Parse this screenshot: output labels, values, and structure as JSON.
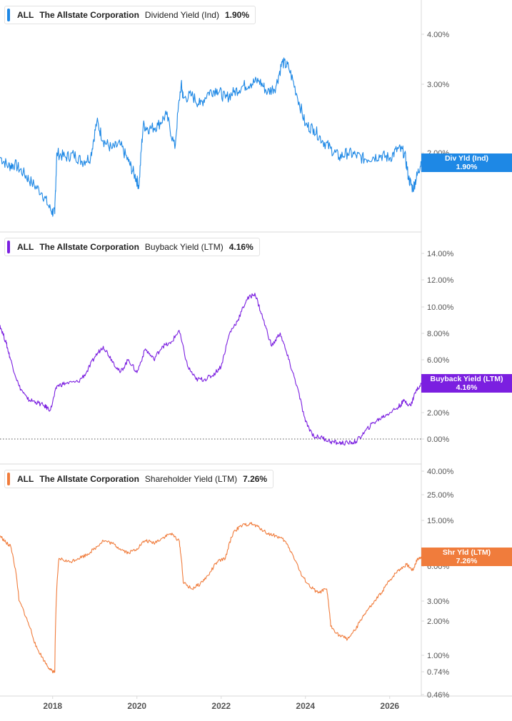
{
  "colors": {
    "dividend": "#1e88e5",
    "buyback": "#7b1fe0",
    "shareholder": "#f07c3c",
    "grid": "#d9d9d9",
    "axis_text": "#555555"
  },
  "x_axis": {
    "ticks": [
      "2018",
      "2020",
      "2022",
      "2024",
      "2026"
    ]
  },
  "panels": [
    {
      "key": "dividend",
      "legend": {
        "ticker": "ALL",
        "company": "The Allstate Corporation",
        "metric": "Dividend Yield (Ind)",
        "value": "1.90%"
      },
      "flag": {
        "label": "Div Yld (Ind)",
        "value": "1.90%"
      },
      "scale": "log",
      "ylim": [
        1.25,
        4.6
      ],
      "tick_labels": [
        "2.00%",
        "3.00%",
        "4.00%"
      ],
      "tick_values": [
        2,
        3,
        4
      ]
    },
    {
      "key": "buyback",
      "legend": {
        "ticker": "ALL",
        "company": "The Allstate Corporation",
        "metric": "Buyback Yield (LTM)",
        "value": "4.16%"
      },
      "flag": {
        "label": "Buyback Yield (LTM)",
        "value": "4.16%"
      },
      "scale": "linear",
      "ylim": [
        -1.7,
        14.6
      ],
      "tick_labels": [
        "0.00%",
        "2.00%",
        "4.00%",
        "6.00%",
        "8.00%",
        "10.00%",
        "12.00%",
        "14.00%"
      ],
      "tick_values": [
        0,
        2,
        4,
        6,
        8,
        10,
        12,
        14
      ],
      "zero_line": true
    },
    {
      "key": "shareholder",
      "legend": {
        "ticker": "ALL",
        "company": "The Allstate Corporation",
        "metric": "Shareholder Yield (LTM)",
        "value": "7.26%"
      },
      "flag": {
        "label": "Shr Yld (LTM)",
        "value": "7.26%"
      },
      "scale": "log",
      "ylim": [
        0.46,
        42
      ],
      "tick_labels": [
        "0.46%",
        "0.74%",
        "1.00%",
        "2.00%",
        "3.00%",
        "6.00%",
        "15.00%",
        "25.00%",
        "40.00%"
      ],
      "tick_values": [
        0.46,
        0.74,
        1,
        2,
        3,
        6,
        15,
        25,
        40
      ]
    }
  ],
  "chart_data": [
    {
      "type": "line",
      "title": "The Allstate Corporation Dividend Yield (Ind)",
      "x_range": [
        2016.75,
        2026.75
      ],
      "yscale": "log",
      "series": [
        {
          "name": "Dividend Yield (Ind)",
          "x": [
            2016.75,
            2016.95,
            2017.1,
            2017.3,
            2017.5,
            2017.75,
            2017.95,
            2018.05,
            2018.1,
            2018.3,
            2018.5,
            2018.7,
            2018.9,
            2019.05,
            2019.2,
            2019.4,
            2019.6,
            2019.8,
            2019.95,
            2020.05,
            2020.15,
            2020.3,
            2020.5,
            2020.7,
            2020.9,
            2021.05,
            2021.1,
            2021.3,
            2021.5,
            2021.7,
            2021.9,
            2022.1,
            2022.3,
            2022.5,
            2022.7,
            2022.9,
            2023.1,
            2023.3,
            2023.45,
            2023.6,
            2023.8,
            2024.0,
            2024.2,
            2024.4,
            2024.6,
            2024.8,
            2025.0,
            2025.2,
            2025.4,
            2025.6,
            2025.8,
            2026.0,
            2026.2,
            2026.35,
            2026.45,
            2026.55,
            2026.65,
            2026.75
          ],
          "y": [
            1.95,
            1.85,
            1.87,
            1.78,
            1.68,
            1.58,
            1.43,
            1.4,
            2.0,
            1.95,
            1.98,
            1.9,
            1.95,
            2.4,
            2.15,
            2.05,
            2.1,
            1.9,
            1.75,
            1.65,
            2.35,
            2.3,
            2.35,
            2.5,
            2.05,
            3.0,
            2.75,
            2.8,
            2.65,
            2.85,
            2.9,
            2.75,
            2.85,
            2.95,
            3.0,
            3.05,
            2.85,
            2.95,
            3.4,
            3.3,
            2.8,
            2.35,
            2.3,
            2.15,
            2.05,
            1.95,
            2.0,
            1.97,
            1.93,
            1.95,
            1.97,
            1.94,
            2.05,
            2.0,
            1.72,
            1.62,
            1.75,
            1.9
          ]
        }
      ]
    },
    {
      "type": "line",
      "title": "The Allstate Corporation Buyback Yield (LTM)",
      "x_range": [
        2016.75,
        2026.75
      ],
      "yscale": "linear",
      "series": [
        {
          "name": "Buyback Yield (LTM)",
          "x": [
            2016.75,
            2016.9,
            2017.0,
            2017.2,
            2017.4,
            2017.6,
            2017.8,
            2017.95,
            2018.1,
            2018.3,
            2018.6,
            2018.8,
            2019.0,
            2019.2,
            2019.4,
            2019.6,
            2019.8,
            2020.0,
            2020.2,
            2020.4,
            2020.6,
            2020.8,
            2021.0,
            2021.2,
            2021.4,
            2021.6,
            2021.8,
            2022.0,
            2022.2,
            2022.4,
            2022.6,
            2022.8,
            2023.0,
            2023.2,
            2023.4,
            2023.6,
            2023.8,
            2024.0,
            2024.2,
            2024.4,
            2024.6,
            2024.8,
            2025.0,
            2025.2,
            2025.4,
            2025.6,
            2025.8,
            2026.0,
            2026.2,
            2026.35,
            2026.5,
            2026.6,
            2026.75
          ],
          "y": [
            8.6,
            7.2,
            6.0,
            4.0,
            3.0,
            2.8,
            2.5,
            2.2,
            4.0,
            4.2,
            4.3,
            5.0,
            6.2,
            7.0,
            6.0,
            5.0,
            6.0,
            5.0,
            6.8,
            6.0,
            7.0,
            7.2,
            8.2,
            5.5,
            4.5,
            4.5,
            4.8,
            5.5,
            8.0,
            9.0,
            10.5,
            11.0,
            9.0,
            7.0,
            8.0,
            6.0,
            4.0,
            1.3,
            0.2,
            0.1,
            -0.2,
            -0.3,
            -0.3,
            -0.2,
            0.5,
            1.2,
            1.6,
            2.0,
            2.4,
            2.9,
            2.5,
            3.5,
            4.16
          ]
        }
      ]
    },
    {
      "type": "line",
      "title": "The Allstate Corporation Shareholder Yield (LTM)",
      "x_range": [
        2016.75,
        2026.75
      ],
      "yscale": "log",
      "series": [
        {
          "name": "Shareholder Yield (LTM)",
          "x": [
            2016.75,
            2016.9,
            2017.0,
            2017.2,
            2017.4,
            2017.6,
            2017.8,
            2017.95,
            2018.05,
            2018.15,
            2018.4,
            2018.6,
            2018.8,
            2019.0,
            2019.2,
            2019.4,
            2019.6,
            2019.8,
            2020.0,
            2020.2,
            2020.4,
            2020.6,
            2020.8,
            2021.0,
            2021.1,
            2021.3,
            2021.5,
            2021.7,
            2021.9,
            2022.1,
            2022.3,
            2022.5,
            2022.7,
            2022.9,
            2023.1,
            2023.3,
            2023.5,
            2023.7,
            2023.9,
            2024.1,
            2024.3,
            2024.5,
            2024.6,
            2024.8,
            2025.0,
            2025.2,
            2025.4,
            2025.6,
            2025.8,
            2026.0,
            2026.2,
            2026.4,
            2026.55,
            2026.65,
            2026.75
          ],
          "y": [
            11.0,
            9.5,
            9.0,
            3.0,
            2.0,
            1.2,
            0.9,
            0.75,
            0.72,
            7.0,
            6.5,
            7.0,
            7.5,
            8.5,
            10.0,
            9.5,
            8.5,
            7.8,
            8.5,
            10.0,
            9.5,
            10.5,
            11.5,
            10.0,
            4.3,
            3.8,
            4.2,
            5.0,
            6.5,
            7.0,
            12.0,
            13.5,
            14.0,
            13.0,
            11.5,
            11.0,
            10.0,
            7.5,
            5.0,
            4.0,
            3.5,
            3.8,
            1.8,
            1.5,
            1.4,
            1.7,
            2.3,
            2.8,
            3.5,
            4.5,
            5.5,
            6.2,
            5.5,
            6.8,
            7.26
          ]
        }
      ]
    }
  ]
}
